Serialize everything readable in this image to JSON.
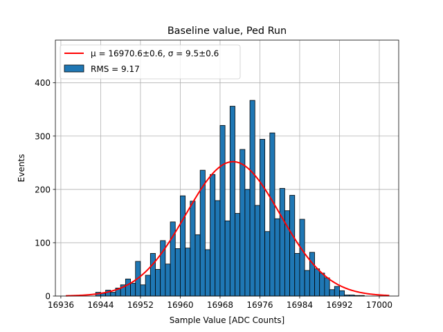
{
  "chart_data": {
    "type": "bar",
    "title": "Baseline value, Ped Run",
    "xlabel": "Sample Value [ADC Counts]",
    "ylabel": "Events",
    "xlim": [
      16934.9,
      17003.9
    ],
    "ylim": [
      0,
      480
    ],
    "xticks": [
      16936,
      16944,
      16952,
      16960,
      16968,
      16976,
      16984,
      16992,
      17000
    ],
    "yticks": [
      0,
      100,
      200,
      300,
      400
    ],
    "grid": true,
    "legend_position": "top-left",
    "bin_start": 16942,
    "bin_width": 1,
    "bin_values": [
      0,
      7,
      5,
      11,
      7,
      15,
      21,
      32,
      24,
      65,
      21,
      39,
      80,
      50,
      104,
      60,
      139,
      89,
      188,
      90,
      178,
      115,
      236,
      87,
      228,
      179,
      320,
      141,
      356,
      155,
      275,
      200,
      367,
      170,
      294,
      121,
      306,
      145,
      202,
      160,
      189,
      80,
      144,
      48,
      82,
      51,
      43,
      34,
      12,
      18,
      10,
      2,
      2,
      1,
      1
    ],
    "series": [
      {
        "name": "RMS = 9.17",
        "kind": "histogram",
        "color": "#1f77b4",
        "edgecolor": "#000000"
      },
      {
        "name": "μ = 16970.6±0.6, σ = 9.5±0.6",
        "kind": "gaussian_fit",
        "color": "#ff0000",
        "mu": 16970.6,
        "sigma": 9.5,
        "amplitude": 252,
        "x_range": [
          16937,
          17002
        ]
      }
    ]
  }
}
